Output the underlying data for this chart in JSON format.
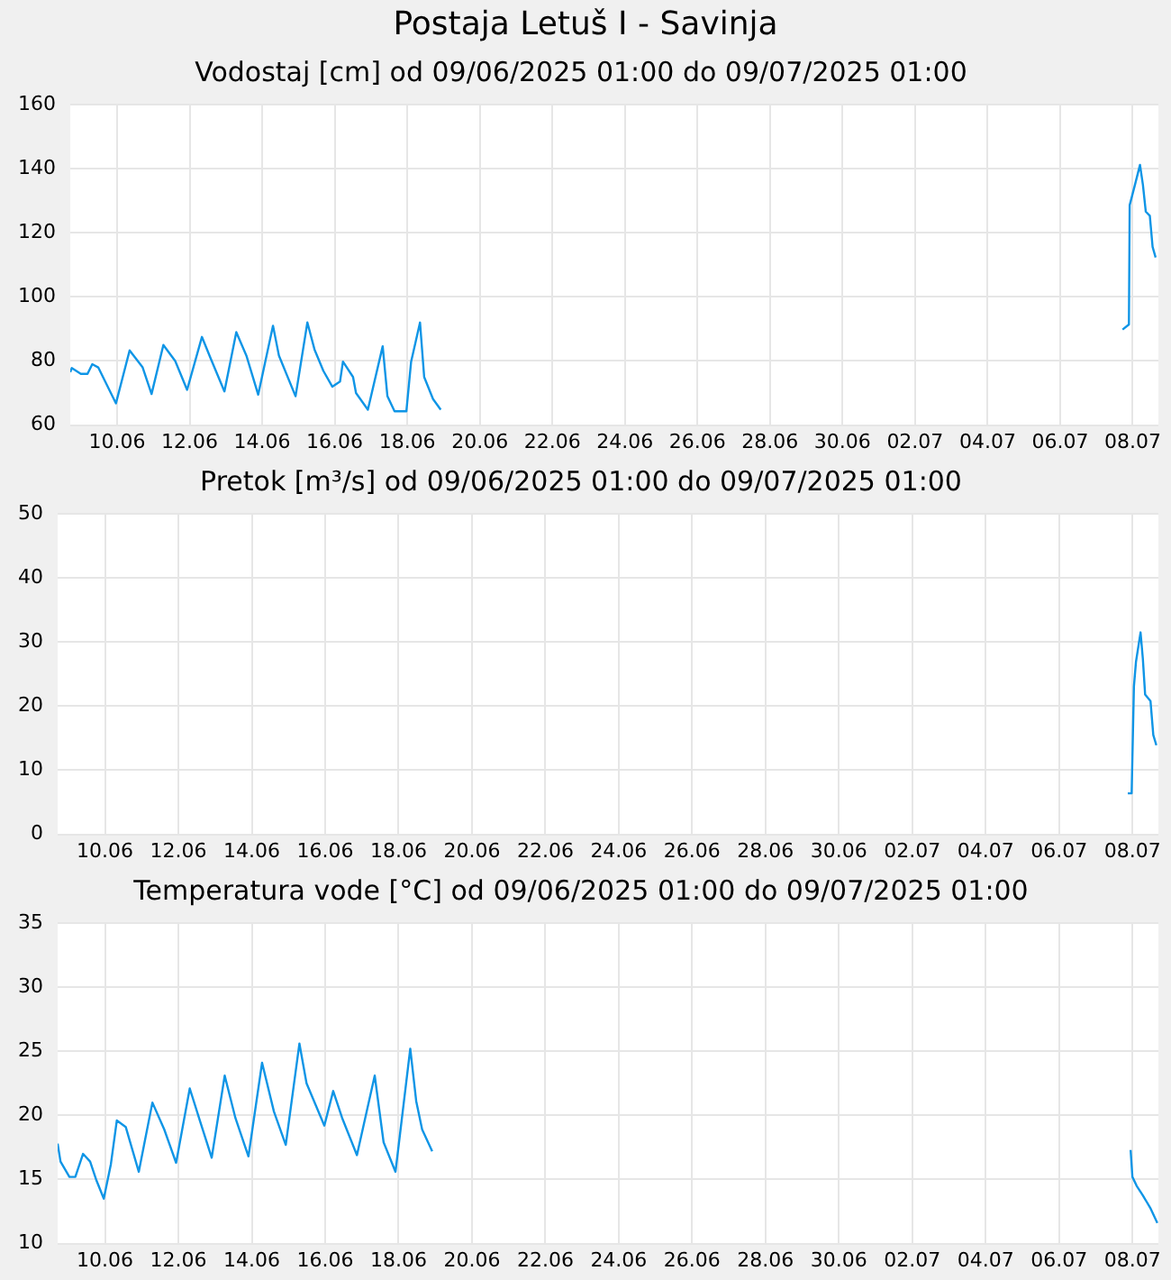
{
  "chart_data": [
    {
      "type": "line",
      "title": "Postaja Letuš I - Savinja",
      "subtitle": "Vodostaj [cm] od 09/06/2025 01:00 do 09/07/2025 01:00",
      "grid": true,
      "legend": false,
      "marker": "none",
      "line_style": "solid",
      "xlim": [
        "2025-06-08T17:00",
        "2025-07-08T17:00"
      ],
      "xticks": [
        {
          "value": "2025-06-10",
          "label": "10.06"
        },
        {
          "value": "2025-06-12",
          "label": "12.06"
        },
        {
          "value": "2025-06-14",
          "label": "14.06"
        },
        {
          "value": "2025-06-16",
          "label": "16.06"
        },
        {
          "value": "2025-06-18",
          "label": "18.06"
        },
        {
          "value": "2025-06-20",
          "label": "20.06"
        },
        {
          "value": "2025-06-22",
          "label": "22.06"
        },
        {
          "value": "2025-06-24",
          "label": "24.06"
        },
        {
          "value": "2025-06-26",
          "label": "26.06"
        },
        {
          "value": "2025-06-28",
          "label": "28.06"
        },
        {
          "value": "2025-06-30",
          "label": "30.06"
        },
        {
          "value": "2025-07-02",
          "label": "02.07"
        },
        {
          "value": "2025-07-04",
          "label": "04.07"
        },
        {
          "value": "2025-07-06",
          "label": "06.07"
        },
        {
          "value": "2025-07-08",
          "label": "08.07"
        }
      ],
      "ylim": [
        60,
        160
      ],
      "yticks": [
        60,
        80,
        100,
        120,
        140,
        160
      ],
      "series": [
        {
          "color": "#0f95e6",
          "x": [
            "2025-06-08T17:00",
            "2025-06-08T18:00",
            "2025-06-09T00:00",
            "2025-06-09T04:25",
            "2025-06-09T07:35",
            "2025-06-09T11:30",
            "2025-06-09T23:15",
            "2025-06-10T08:17",
            "2025-06-10T16:54",
            "2025-06-10T22:48",
            "2025-06-11T06:37",
            "2025-06-11T14:28",
            "2025-06-11T22:19",
            "2025-06-12T08:07",
            "2025-06-12T14:00",
            "2025-06-12T23:01",
            "2025-06-13T06:52",
            "2025-06-13T13:32",
            "2025-06-13T21:22",
            "2025-06-14T07:10",
            "2025-06-14T11:05",
            "2025-06-14T22:05",
            "2025-06-15T05:54",
            "2025-06-15T10:37",
            "2025-06-15T16:30",
            "2025-06-15T22:23",
            "2025-06-16T03:30",
            "2025-06-16T05:27",
            "2025-06-16T12:07",
            "2025-06-16T14:05",
            "2025-06-16T21:56",
            "2025-06-17T07:44",
            "2025-06-17T10:52",
            "2025-06-17T15:35",
            "2025-06-17T23:24",
            "2025-06-18T02:33",
            "2025-06-18T08:26",
            "2025-06-18T11:11",
            "2025-06-18T17:04",
            "2025-06-18T22:09",
            "2025-06-28T00:00",
            "2025-07-07T17:17",
            "2025-07-07T21:30",
            "2025-07-07T22:00",
            "2025-07-08T01:40",
            "2025-07-08T04:50",
            "2025-07-08T06:45",
            "2025-07-08T08:40",
            "2025-07-08T11:20",
            "2025-07-08T13:10",
            "2025-07-08T15:10"
          ],
          "values": [
            76.5,
            77.8,
            76,
            76,
            79,
            78,
            66.8,
            83.3,
            78,
            69.7,
            85,
            80,
            71,
            87.5,
            80.7,
            70.5,
            89,
            81.7,
            69.5,
            91,
            81.7,
            69,
            92,
            83.6,
            76.9,
            72,
            73.6,
            79.8,
            75,
            70,
            64.8,
            84.6,
            69,
            64.3,
            64.3,
            79.8,
            92,
            75,
            68.1,
            64.8,
            null,
            89.8,
            91.4,
            128.6,
            135.3,
            141.2,
            135,
            126.6,
            125.3,
            115.6,
            112.3
          ]
        }
      ]
    },
    {
      "type": "line",
      "title": "Pretok [m³/s] od 09/06/2025 01:00 do 09/07/2025 01:00",
      "grid": true,
      "legend": false,
      "marker": "none",
      "line_style": "solid",
      "xlim": [
        "2025-06-08T17:00",
        "2025-07-08T17:00"
      ],
      "xticks": [
        {
          "value": "2025-06-10",
          "label": "10.06"
        },
        {
          "value": "2025-06-12",
          "label": "12.06"
        },
        {
          "value": "2025-06-14",
          "label": "14.06"
        },
        {
          "value": "2025-06-16",
          "label": "16.06"
        },
        {
          "value": "2025-06-18",
          "label": "18.06"
        },
        {
          "value": "2025-06-20",
          "label": "20.06"
        },
        {
          "value": "2025-06-22",
          "label": "22.06"
        },
        {
          "value": "2025-06-24",
          "label": "24.06"
        },
        {
          "value": "2025-06-26",
          "label": "26.06"
        },
        {
          "value": "2025-06-28",
          "label": "28.06"
        },
        {
          "value": "2025-06-30",
          "label": "30.06"
        },
        {
          "value": "2025-07-02",
          "label": "02.07"
        },
        {
          "value": "2025-07-04",
          "label": "04.07"
        },
        {
          "value": "2025-07-06",
          "label": "06.07"
        },
        {
          "value": "2025-07-08",
          "label": "08.07"
        }
      ],
      "ylim": [
        0,
        50
      ],
      "yticks": [
        0,
        10,
        20,
        30,
        40,
        50
      ],
      "series": [
        {
          "color": "#0f95e6",
          "x": [
            "2025-07-07T21:00",
            "2025-07-07T23:30",
            "2025-07-08T01:00",
            "2025-07-08T02:20",
            "2025-07-08T05:20",
            "2025-07-08T06:50",
            "2025-07-08T08:20",
            "2025-07-08T11:50",
            "2025-07-08T13:40",
            "2025-07-08T15:40"
          ],
          "values": [
            6.4,
            6.4,
            23.1,
            26.9,
            31.5,
            27.4,
            21.8,
            20.8,
            15.5,
            13.9
          ]
        }
      ]
    },
    {
      "type": "line",
      "title": "Temperatura vode [°C] od 09/06/2025 01:00 do 09/07/2025 01:00",
      "grid": true,
      "legend": false,
      "marker": "none",
      "line_style": "solid",
      "xlim": [
        "2025-06-08T17:00",
        "2025-07-08T17:00"
      ],
      "xticks": [
        {
          "value": "2025-06-10",
          "label": "10.06"
        },
        {
          "value": "2025-06-12",
          "label": "12.06"
        },
        {
          "value": "2025-06-14",
          "label": "14.06"
        },
        {
          "value": "2025-06-16",
          "label": "16.06"
        },
        {
          "value": "2025-06-18",
          "label": "18.06"
        },
        {
          "value": "2025-06-20",
          "label": "20.06"
        },
        {
          "value": "2025-06-22",
          "label": "22.06"
        },
        {
          "value": "2025-06-24",
          "label": "24.06"
        },
        {
          "value": "2025-06-26",
          "label": "26.06"
        },
        {
          "value": "2025-06-28",
          "label": "28.06"
        },
        {
          "value": "2025-06-30",
          "label": "30.06"
        },
        {
          "value": "2025-07-02",
          "label": "02.07"
        },
        {
          "value": "2025-07-04",
          "label": "04.07"
        },
        {
          "value": "2025-07-06",
          "label": "06.07"
        },
        {
          "value": "2025-07-08",
          "label": "08.07"
        }
      ],
      "ylim": [
        10,
        35
      ],
      "yticks": [
        10,
        15,
        20,
        25,
        30,
        35
      ],
      "series": [
        {
          "color": "#0f95e6",
          "x": [
            "2025-06-08T17:00",
            "2025-06-08T18:53",
            "2025-06-09T00:42",
            "2025-06-09T04:34",
            "2025-06-09T09:36",
            "2025-06-09T14:15",
            "2025-06-09T18:09",
            "2025-06-09T23:11",
            "2025-06-10T03:50",
            "2025-06-10T07:42",
            "2025-06-10T13:32",
            "2025-06-10T22:04",
            "2025-06-11T06:59",
            "2025-06-11T14:44",
            "2025-06-11T22:29",
            "2025-06-12T07:25",
            "2025-06-12T14:01",
            "2025-06-12T21:46",
            "2025-06-13T06:17",
            "2025-06-13T13:16",
            "2025-06-13T21:48",
            "2025-06-14T06:43",
            "2025-06-14T14:28",
            "2025-06-14T22:13",
            "2025-06-15T07:09",
            "2025-06-15T11:48",
            "2025-06-15T23:27",
            "2025-06-16T05:15",
            "2025-06-16T11:05",
            "2025-06-16T20:46",
            "2025-06-17T08:24",
            "2025-06-17T14:13",
            "2025-06-17T21:59",
            "2025-06-18T07:39",
            "2025-06-18T11:33",
            "2025-06-18T15:25",
            "2025-06-18T22:00",
            "2025-06-28T00:00",
            "2025-07-07T22:50",
            "2025-07-08T00:00",
            "2025-07-08T02:47",
            "2025-07-08T06:38",
            "2025-07-08T11:38",
            "2025-07-08T16:19"
          ],
          "values": [
            17.8,
            16.4,
            15.2,
            15.2,
            17,
            16.4,
            15,
            13.5,
            16.2,
            19.6,
            19.1,
            15.6,
            21,
            18.9,
            16.3,
            22.1,
            19.6,
            16.7,
            23.1,
            19.8,
            16.8,
            24.1,
            20.3,
            17.7,
            25.6,
            22.5,
            19.2,
            21.9,
            19.8,
            16.9,
            23.1,
            17.9,
            15.6,
            25.2,
            21.1,
            18.9,
            17.2,
            null,
            17.3,
            15.2,
            14.5,
            13.8,
            12.8,
            11.6
          ]
        }
      ]
    }
  ]
}
